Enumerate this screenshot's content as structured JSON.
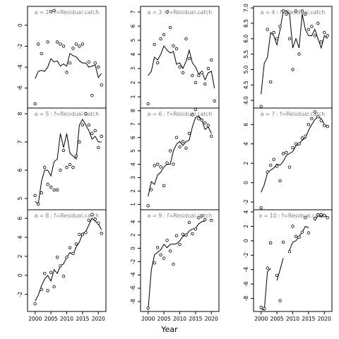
{
  "figure": {
    "xlabel": "Year",
    "x_ticks": [
      2000,
      2005,
      2010,
      2015,
      2020
    ]
  },
  "chart_data": [
    {
      "type": "scatter",
      "title": "a = 2 : f=Residual.catch",
      "xlim": [
        1997.6,
        2022.4
      ],
      "ylim": [
        -7.9,
        1.8
      ],
      "yticks": [
        -6,
        -4,
        -2,
        0
      ],
      "ytick_labels": [
        "-6",
        "-4",
        "-2",
        "0"
      ],
      "x": [
        2000,
        2001,
        2002,
        2003,
        2004,
        2005,
        2006,
        2007,
        2008,
        2009,
        2010,
        2011,
        2012,
        2013,
        2014,
        2015,
        2016,
        2017,
        2018,
        2019,
        2020,
        2021
      ],
      "points": [
        -7.5,
        -1.8,
        -2.7,
        null,
        -1.6,
        1.3,
        1.4,
        -1.6,
        -1.8,
        -2.0,
        -4.5,
        -3.6,
        -2.2,
        -1.8,
        -2.0,
        -1.8,
        null,
        -3.5,
        -6.7,
        -3.6,
        -4.0,
        -5.7
      ],
      "fit": [
        -5.1,
        -4.4,
        -4.3,
        -4.4,
        -4.0,
        -3.2,
        -3.5,
        -3.4,
        -3.9,
        -3.7,
        -3.9,
        -2.7,
        -2.9,
        -3.0,
        -3.4,
        -3.6,
        -3.6,
        -4.0,
        -3.9,
        -3.8,
        -5.0,
        -4.6
      ]
    },
    {
      "type": "scatter",
      "title": "a = 5 : f=Residual.catch",
      "xlim": [
        1997.6,
        2022.4
      ],
      "ylim": [
        4.6,
        8.2
      ],
      "yticks": [
        5,
        6,
        7,
        8
      ],
      "ytick_labels": [
        "5",
        "6",
        "7",
        "8"
      ],
      "x": [
        2000,
        2001,
        2002,
        2003,
        2004,
        2005,
        2006,
        2007,
        2008,
        2009,
        2010,
        2011,
        2012,
        2013,
        2014,
        2015,
        2016,
        2017,
        2018,
        2019,
        2020,
        2021
      ],
      "points": [
        5.1,
        4.8,
        5.2,
        6.1,
        5.5,
        5.4,
        5.3,
        5.3,
        6.0,
        6.7,
        6.1,
        6.2,
        6.1,
        6.5,
        7.0,
        7.6,
        8.0,
        7.6,
        7.3,
        7.4,
        6.8,
        7.2
      ],
      "fit": [
        4.9,
        4.8,
        5.6,
        6.0,
        6.0,
        5.8,
        6.3,
        6.4,
        7.3,
        6.8,
        7.3,
        6.6,
        6.5,
        6.4,
        7.6,
        7.8,
        7.6,
        7.4,
        7.1,
        7.2,
        7.0,
        7.0
      ]
    },
    {
      "type": "scatter",
      "title": "a = 8 : f=Residual.catch",
      "xlim": [
        1997.6,
        2022.4
      ],
      "ylim": [
        -3.8,
        6.9
      ],
      "yticks": [
        -2,
        0,
        2,
        4,
        6
      ],
      "ytick_labels": [
        "-2",
        "0",
        "2",
        "4",
        "6"
      ],
      "x": [
        2000,
        2001,
        2002,
        2003,
        2004,
        2005,
        2006,
        2007,
        2008,
        2009,
        2010,
        2011,
        2012,
        2013,
        2014,
        2015,
        2016,
        2017,
        2018,
        2019,
        2020,
        2021
      ],
      "points": [
        -3.0,
        null,
        -1.5,
        0.2,
        -1.6,
        0.3,
        -1.2,
        1.9,
        1.0,
        -0.1,
        1.9,
        2.9,
        2.3,
        3.3,
        4.3,
        4.3,
        4.5,
        5.8,
        6.4,
        5.9,
        5.5,
        4.4
      ],
      "fit": [
        -2.7,
        -2.1,
        -1.1,
        -0.4,
        0.0,
        -0.6,
        0.6,
        0.2,
        1.0,
        1.2,
        1.9,
        2.4,
        2.2,
        3.0,
        3.5,
        4.4,
        4.6,
        5.3,
        6.0,
        5.7,
        5.4,
        4.8
      ]
    },
    {
      "type": "scatter",
      "title": "a = 3 : f=Residual.catch",
      "xlim": [
        1997.6,
        2022.4
      ],
      "ylim": [
        0.2,
        7.4
      ],
      "yticks": [
        1,
        2,
        3,
        4,
        5,
        6,
        7
      ],
      "ytick_labels": [
        "1",
        "2",
        "3",
        "4",
        "5",
        "6",
        "7"
      ],
      "x": [
        2000,
        2001,
        2002,
        2003,
        2004,
        2005,
        2006,
        2007,
        2008,
        2009,
        2010,
        2011,
        2012,
        2013,
        2014,
        2015,
        2016,
        2017,
        2018,
        2019,
        2020,
        2021
      ],
      "points": [
        0.5,
        null,
        4.7,
        3.4,
        5.1,
        5.4,
        7.0,
        5.9,
        4.6,
        4.4,
        3.1,
        2.7,
        5.1,
        3.7,
        2.5,
        2.0,
        2.5,
        2.7,
        1.9,
        3.0,
        3.6,
        0.7
      ],
      "fit": [
        2.5,
        2.8,
        3.8,
        3.6,
        4.0,
        4.6,
        4.3,
        4.1,
        4.2,
        3.3,
        3.4,
        3.0,
        3.5,
        4.3,
        3.4,
        3.1,
        2.6,
        2.8,
        2.2,
        2.7,
        2.8,
        1.6
      ]
    },
    {
      "type": "scatter",
      "title": "a = 6 : f=Residual.catch",
      "xlim": [
        1997.6,
        2022.4
      ],
      "ylim": [
        0.6,
        8.2
      ],
      "yticks": [
        1,
        2,
        3,
        4,
        5,
        6,
        7,
        8
      ],
      "ytick_labels": [
        "1",
        "2",
        "3",
        "4",
        "5",
        "6",
        "7",
        "8"
      ],
      "x": [
        2000,
        2001,
        2002,
        2003,
        2004,
        2005,
        2006,
        2007,
        2008,
        2009,
        2010,
        2011,
        2012,
        2013,
        2014,
        2015,
        2016,
        2017,
        2018,
        2019,
        2020,
        2021
      ],
      "points": [
        0.9,
        2.1,
        3.9,
        4.0,
        3.8,
        2.4,
        4.1,
        5.0,
        4.0,
        6.0,
        5.3,
        5.7,
        5.2,
        6.3,
        7.7,
        8.1,
        7.4,
        7.3,
        7.1,
        6.9,
        6.1,
        null
      ],
      "fit": [
        1.6,
        2.7,
        2.5,
        3.2,
        3.4,
        3.8,
        4.0,
        4.0,
        5.0,
        5.5,
        5.7,
        5.4,
        5.7,
        5.8,
        6.8,
        7.5,
        7.6,
        7.3,
        6.6,
        6.8,
        6.3,
        null
      ]
    },
    {
      "type": "scatter",
      "title": "a = 9 : f=Residual.catch",
      "xlim": [
        1997.6,
        2022.4
      ],
      "ylim": [
        -9.5,
        5.8
      ],
      "yticks": [
        -8,
        -6,
        -4,
        -2,
        0,
        2,
        4
      ],
      "ytick_labels": [
        "-8",
        "-6",
        "-4",
        "-2",
        "0",
        "2",
        "4"
      ],
      "x": [
        2000,
        2001,
        2002,
        2003,
        2004,
        2005,
        2006,
        2007,
        2008,
        2009,
        2010,
        2011,
        2012,
        2013,
        2014,
        2015,
        2016,
        2017,
        2018,
        2019,
        2020,
        2021
      ],
      "points": [
        -9.0,
        null,
        -2.2,
        0.1,
        -1.0,
        -1.5,
        1.2,
        -0.4,
        -2.4,
        1.9,
        0.6,
        2.1,
        2.0,
        3.9,
        2.2,
        2.9,
        4.6,
        4.9,
        4.3,
        null,
        4.2,
        null
      ],
      "fit": [
        -9.3,
        -3.3,
        -1.0,
        -0.6,
        -0.2,
        0.6,
        0.1,
        0.6,
        0.6,
        0.7,
        1.1,
        1.8,
        2.0,
        2.6,
        2.9,
        3.0,
        3.7,
        4.0,
        4.1,
        null,
        4.0,
        null
      ]
    },
    {
      "type": "scatter",
      "title": "a = 4 : f=Residual.catch",
      "xlim": [
        1997.6,
        2022.4
      ],
      "ylim": [
        3.75,
        7.05
      ],
      "yticks": [
        4.0,
        4.5,
        5.0,
        5.5,
        6.0,
        6.5,
        7.0
      ],
      "ytick_labels": [
        "4.0",
        "4.5",
        "5.0",
        "5.5",
        "6.0",
        "6.5",
        "7.0"
      ],
      "x": [
        2000,
        2001,
        2002,
        2003,
        2004,
        2005,
        2006,
        2007,
        2008,
        2009,
        2010,
        2011,
        2012,
        2013,
        2014,
        2015,
        2016,
        2017,
        2018,
        2019,
        2020,
        2021
      ],
      "points": [
        3.8,
        null,
        6.3,
        4.6,
        6.2,
        6.0,
        6.4,
        6.9,
        6.8,
        6.0,
        5.0,
        6.9,
        5.5,
        6.9,
        6.8,
        6.3,
        6.4,
        6.1,
        6.5,
        5.9,
        6.2,
        6.1
      ],
      "fit": [
        4.2,
        5.2,
        5.4,
        6.2,
        6.1,
        5.8,
        6.3,
        6.9,
        6.9,
        6.8,
        5.7,
        6.0,
        5.7,
        6.8,
        6.3,
        6.1,
        6.1,
        6.3,
        6.0,
        5.7,
        6.1,
        6.0
      ]
    },
    {
      "type": "scatter",
      "title": "a = 7 : f=Residual.catch",
      "xlim": [
        1997.6,
        2022.4
      ],
      "ylim": [
        -2.8,
        7.7
      ],
      "yticks": [
        -2,
        0,
        2,
        4,
        6
      ],
      "ytick_labels": [
        "-2",
        "0",
        "2",
        "4",
        "6"
      ],
      "x": [
        2000,
        2001,
        2002,
        2003,
        2004,
        2005,
        2006,
        2007,
        2008,
        2009,
        2010,
        2011,
        2012,
        2013,
        2014,
        2015,
        2016,
        2017,
        2018,
        2019,
        2020,
        2021
      ],
      "points": [
        -2.6,
        null,
        1.1,
        1.8,
        2.4,
        1.7,
        0.2,
        3.0,
        3.1,
        1.6,
        3.6,
        4.0,
        4.0,
        4.6,
        4.8,
        6.0,
        6.6,
        7.3,
        6.8,
        6.4,
        5.9,
        5.8
      ],
      "fit": [
        -1.0,
        -0.2,
        1.0,
        1.3,
        1.5,
        1.9,
        1.8,
        2.2,
        2.8,
        3.0,
        3.2,
        3.8,
        4.0,
        4.4,
        4.6,
        5.4,
        6.0,
        6.5,
        6.8,
        6.6,
        6.0,
        5.8
      ]
    },
    {
      "type": "scatter",
      "title": "a = 10 : f=Residual.catch",
      "xlim": [
        1997.6,
        2022.4
      ],
      "ylim": [
        -9.8,
        4.3
      ],
      "yticks": [
        -8,
        -6,
        -4,
        -2,
        0,
        2,
        4
      ],
      "ytick_labels": [
        "-8",
        "-6",
        "-4",
        "-2",
        "0",
        "2",
        "4"
      ],
      "x": [
        2000,
        2001,
        2002,
        2003,
        2004,
        2005,
        2006,
        2007,
        2008,
        2009,
        2010,
        2011,
        2012,
        2013,
        2014,
        2015,
        2016,
        2017,
        2018,
        2019,
        2020,
        2021
      ],
      "points": [
        -9.2,
        -9.4,
        -3.8,
        -0.3,
        null,
        -4.8,
        -8.3,
        -0.2,
        null,
        -1.5,
        2.0,
        0.6,
        0.5,
        1.2,
        3.2,
        1.1,
        null,
        3.1,
        3.6,
        3.6,
        3.5,
        3.2
      ],
      "fit": [
        -9.5,
        -9.6,
        -4.3,
        -3.8,
        null,
        -5.5,
        -4.0,
        -2.4,
        null,
        -1.3,
        -0.2,
        0.0,
        0.6,
        1.2,
        2.0,
        1.8,
        null,
        2.8,
        3.5,
        3.3,
        3.6,
        3.2
      ]
    }
  ]
}
